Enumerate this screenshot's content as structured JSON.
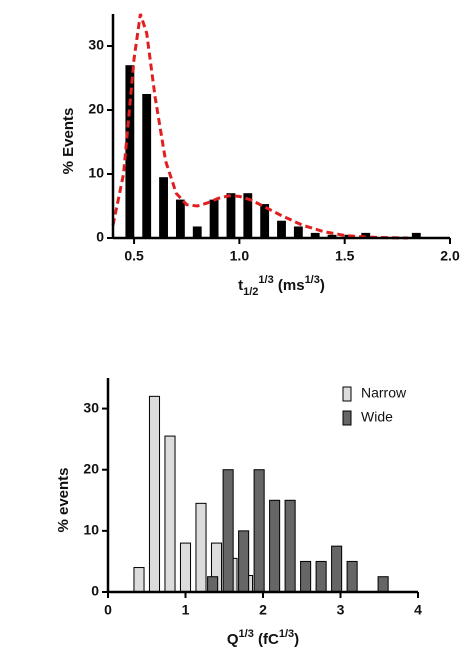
{
  "chart_data": [
    {
      "type": "combo",
      "ylabel": "% Events",
      "xlabel": [
        {
          "text": "t"
        },
        {
          "text": "1/2",
          "pos": "sub"
        },
        {
          "text": "1/3",
          "pos": "super"
        },
        {
          "text": " (ms"
        },
        {
          "text": "1/3",
          "pos": "super"
        },
        {
          "text": ")"
        }
      ],
      "xlim": [
        0.4,
        2.0
      ],
      "xticks": [
        0.5,
        {
          "value": 1,
          "label": "1.0"
        },
        1.5,
        {
          "value": 2,
          "label": "2.0"
        }
      ],
      "ylim": [
        0,
        35
      ],
      "yticks": [
        0,
        10,
        20,
        30
      ],
      "series": [
        {
          "type": "bar",
          "color": "#000000",
          "x": [
            0.48,
            0.56,
            0.64,
            0.72,
            0.8,
            0.88,
            0.96,
            1.04,
            1.12,
            1.2,
            1.28,
            1.36,
            1.44,
            1.52,
            1.6,
            1.84
          ],
          "values": [
            27,
            22.5,
            9.5,
            6,
            1.8,
            6,
            7,
            7,
            5.3,
            2.7,
            1.8,
            0.8,
            0.5,
            0.5,
            0.8,
            0.8
          ]
        },
        {
          "type": "line",
          "color": "#e02020",
          "dashed": true,
          "x": [
            0.4,
            0.45,
            0.5,
            0.53,
            0.56,
            0.6,
            0.65,
            0.7,
            0.75,
            0.8,
            0.85,
            0.9,
            0.95,
            1.0,
            1.05,
            1.1,
            1.2,
            1.3,
            1.4,
            1.5,
            1.6,
            1.7,
            1.8
          ],
          "values": [
            2,
            10,
            28,
            35,
            32,
            22,
            12,
            7,
            5.2,
            5,
            5.5,
            6.2,
            6.6,
            6.5,
            6,
            5.2,
            3.5,
            2,
            1,
            0.4,
            0.15,
            0.05,
            0
          ]
        }
      ]
    },
    {
      "type": "bar",
      "ylabel": "% events",
      "xlabel": [
        {
          "text": "Q"
        },
        {
          "text": "1/3",
          "pos": "super"
        },
        {
          "text": " (fC"
        },
        {
          "text": "1/3",
          "pos": "super"
        },
        {
          "text": ")"
        }
      ],
      "xlim": [
        0,
        4
      ],
      "xticks": [
        0,
        1,
        2,
        3,
        4
      ],
      "ylim": [
        0,
        35
      ],
      "yticks": [
        0,
        10,
        20,
        30
      ],
      "legend": "top-right",
      "series": [
        {
          "name": "Narrow",
          "type": "bar",
          "color": "#dcdcdc",
          "x": [
            0.4,
            0.6,
            0.8,
            1.0,
            1.2,
            1.4,
            1.6,
            1.8
          ],
          "values": [
            4,
            32,
            25.5,
            8,
            14.5,
            8,
            5.5,
            2.7
          ]
        },
        {
          "name": "Wide",
          "type": "bar",
          "color": "#666666",
          "x": [
            1.35,
            1.55,
            1.75,
            1.95,
            2.15,
            2.35,
            2.55,
            2.75,
            2.95,
            3.15,
            3.55
          ],
          "values": [
            2.5,
            20,
            10,
            20,
            15,
            15,
            5,
            5,
            7.5,
            5,
            2.5
          ]
        }
      ]
    }
  ]
}
